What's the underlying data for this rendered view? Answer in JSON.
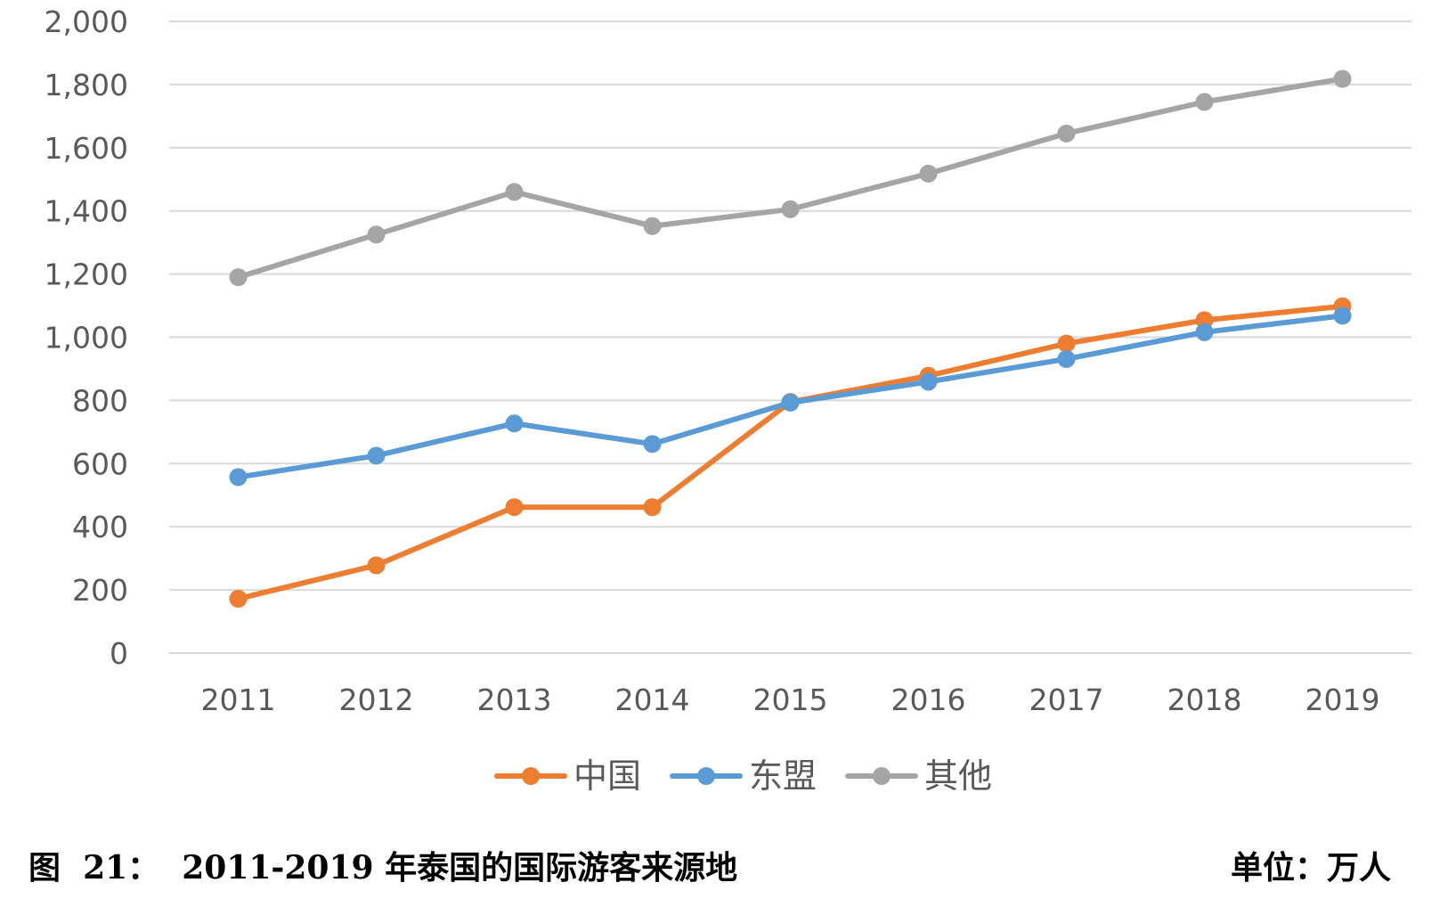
{
  "colors": {
    "china": "#ED7D31",
    "asean": "#5B9BD5",
    "other": "#A5A5A5",
    "grid": "#D9D9D9",
    "text": "#595959"
  },
  "chart_data": {
    "type": "line",
    "categories": [
      "2011",
      "2012",
      "2013",
      "2014",
      "2015",
      "2016",
      "2017",
      "2018",
      "2019"
    ],
    "ylim": [
      0,
      2000
    ],
    "yticks": [
      "0",
      "200",
      "400",
      "600",
      "800",
      "1,000",
      "1,200",
      "1,400",
      "1,600",
      "1,800",
      "2,000"
    ],
    "grid": true,
    "legend_position": "bottom",
    "series": [
      {
        "name": "中国",
        "color": "#ED7D31",
        "values": [
          172,
          278,
          462,
          462,
          795,
          878,
          980,
          1054,
          1098
        ]
      },
      {
        "name": "东盟",
        "color": "#5B9BD5",
        "values": [
          557,
          625,
          727,
          662,
          793,
          859,
          931,
          1016,
          1068
        ]
      },
      {
        "name": "其他",
        "color": "#A5A5A5",
        "values": [
          1190,
          1325,
          1460,
          1352,
          1405,
          1518,
          1645,
          1745,
          1818
        ]
      }
    ]
  },
  "caption": {
    "title": "图  21：  2011-2019 年泰国的国际游客来源地",
    "unit": "单位：万人"
  }
}
